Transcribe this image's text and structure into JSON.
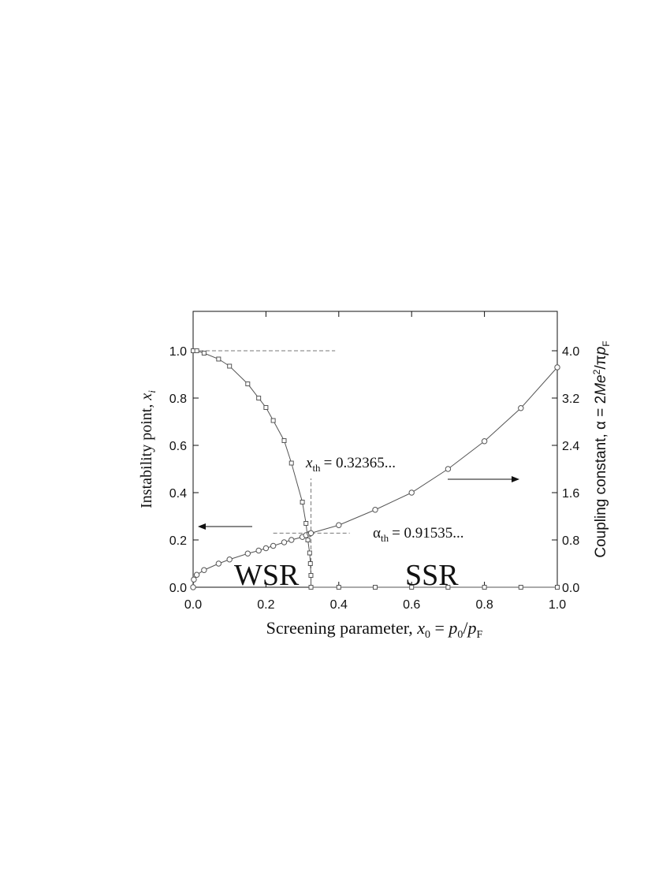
{
  "chart_data": {
    "type": "line",
    "xlabel": [
      "Screening parameter,  ",
      "x",
      "0",
      " = ",
      "p",
      "0",
      "/",
      "p",
      "F"
    ],
    "ylabel": [
      "Instability point, ",
      "x",
      "i"
    ],
    "y2label": [
      "Coupling constant, α = 2",
      "Me",
      "2",
      "/π",
      "p",
      "F"
    ],
    "xlim": [
      0,
      1
    ],
    "xticks": [
      {
        "value": 0,
        "label": "0.0"
      },
      0.2,
      0.4,
      0.6,
      0.8,
      {
        "value": 1,
        "label": "1.0"
      }
    ],
    "ylim": [
      0,
      1.1667
    ],
    "yticks": [
      {
        "value": 0,
        "label": "0.0"
      },
      0.2,
      0.4,
      0.6,
      0.8,
      {
        "value": 1,
        "label": "1.0"
      }
    ],
    "y2lim": [
      0,
      4.6667
    ],
    "y2ticks": [
      {
        "value": 0,
        "label": "0.0"
      },
      0.8,
      1.6,
      2.4,
      3.2,
      {
        "value": 4,
        "label": "4.0"
      }
    ],
    "series": [
      {
        "axis": "y",
        "marker": "square",
        "color": "#555555",
        "x": [
          0,
          0.01,
          0.03,
          0.07,
          0.1,
          0.15,
          0.18,
          0.2,
          0.22,
          0.25,
          0.27,
          0.3,
          0.31,
          0.315,
          0.32,
          0.322,
          0.3235,
          0.32365,
          0.4,
          0.5,
          0.6,
          0.7,
          0.8,
          0.9,
          1.0
        ],
        "values": [
          1.0,
          1.0,
          0.99,
          0.965,
          0.935,
          0.86,
          0.8,
          0.76,
          0.705,
          0.62,
          0.525,
          0.36,
          0.27,
          0.2,
          0.145,
          0.1,
          0.05,
          0,
          0,
          0,
          0,
          0,
          0,
          0,
          0
        ]
      },
      {
        "axis": "y2",
        "marker": "circle",
        "color": "#555555",
        "x": [
          0,
          0.002,
          0.01,
          0.03,
          0.07,
          0.1,
          0.15,
          0.18,
          0.2,
          0.22,
          0.25,
          0.27,
          0.3,
          0.31,
          0.32,
          0.32365,
          0.4,
          0.5,
          0.6,
          0.7,
          0.8,
          0.9,
          1.0
        ],
        "values": [
          0,
          0.13,
          0.21,
          0.29,
          0.4,
          0.47,
          0.57,
          0.62,
          0.66,
          0.7,
          0.76,
          0.8,
          0.85,
          0.88,
          0.905,
          0.915,
          1.05,
          1.31,
          1.6,
          2.0,
          2.47,
          3.03,
          3.72
        ]
      }
    ],
    "reference_lines": [
      {
        "axis": "y",
        "y": 1.0,
        "x": [
          0,
          0.39
        ]
      },
      {
        "axis": "y",
        "x": 0.32365,
        "y": [
          0,
          0.46
        ]
      },
      {
        "axis": "y2",
        "y": 0.915,
        "x": [
          0.22,
          0.43
        ]
      }
    ],
    "annotations": {
      "x_th": [
        "x",
        "th",
        "=  0.32365..."
      ],
      "alpha_th": [
        "α",
        "th",
        "=  0.91535..."
      ],
      "wsr": "WSR",
      "ssr": "SSR"
    }
  }
}
